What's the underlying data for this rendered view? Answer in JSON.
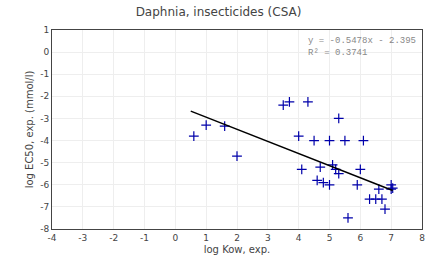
{
  "chart_data": {
    "type": "scatter",
    "title": "Daphnia, insecticides (CSA)",
    "xlabel": "log Kow, exp.",
    "ylabel": "log EC50, exp. (mmol/l)",
    "xlim": [
      -4,
      8
    ],
    "ylim": [
      -8,
      1
    ],
    "xticks": [
      -4,
      -3,
      -2,
      -1,
      0,
      1,
      2,
      3,
      4,
      5,
      6,
      7,
      8
    ],
    "yticks": [
      -8,
      -7,
      -6,
      -5,
      -4,
      -3,
      -2,
      -1,
      0,
      1
    ],
    "grid": true,
    "series": [
      {
        "type": "scatter",
        "marker": "plus",
        "color": "#0000aa",
        "x": [
          0.6,
          1.0,
          1.6,
          2.0,
          3.5,
          3.7,
          4.0,
          4.1,
          4.3,
          4.5,
          4.6,
          4.7,
          4.8,
          5.0,
          5.0,
          5.1,
          5.2,
          5.3,
          5.3,
          5.5,
          5.6,
          5.9,
          6.0,
          6.1,
          6.3,
          6.5,
          6.6,
          6.7,
          6.8,
          7.0,
          7.0,
          7.05
        ],
        "values": [
          -3.8,
          -3.3,
          -3.35,
          -4.7,
          -2.4,
          -2.25,
          -3.8,
          -5.3,
          -2.25,
          -4.0,
          -5.8,
          -5.2,
          -5.9,
          -4.0,
          -6.0,
          -5.1,
          -5.3,
          -3.0,
          -5.5,
          -4.0,
          -7.5,
          -6.0,
          -5.3,
          -4.0,
          -6.65,
          -6.65,
          -6.2,
          -6.65,
          -7.1,
          -6.0,
          -6.2,
          -6.15
        ]
      },
      {
        "type": "line",
        "line_style": "solid",
        "color": "#000000",
        "x": [
          0.5,
          7.05
        ],
        "values": [
          -2.6689,
          -6.25699
        ]
      }
    ],
    "annotations": [
      "y = -0.5478x - 2.395",
      "R² = 0.3741"
    ]
  }
}
